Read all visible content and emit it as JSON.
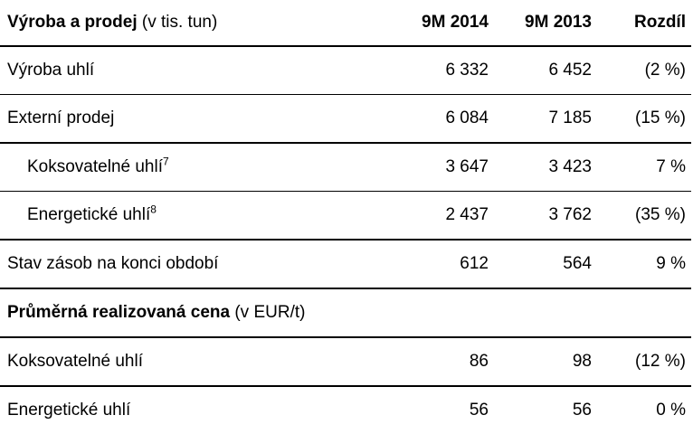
{
  "header": {
    "title_bold": "Výroba a prodej",
    "title_unit": "(v tis. tun)",
    "col1": "9M 2014",
    "col2": "9M 2013",
    "col3": "Rozdíl"
  },
  "rows": [
    {
      "label": "Výroba uhlí",
      "v2014": "6 332",
      "v2013": "6 452",
      "diff": "(2 %)"
    },
    {
      "label": "Externí prodej",
      "v2014": "6 084",
      "v2013": "7 185",
      "diff": "(15 %)"
    },
    {
      "label": "Koksovatelné uhlí",
      "sup": "7",
      "v2014": "3 647",
      "v2013": "3 423",
      "diff": "7 %"
    },
    {
      "label": "Energetické uhlí",
      "sup": "8",
      "v2014": "2 437",
      "v2013": "3 762",
      "diff": "(35 %)"
    },
    {
      "label": "Stav zásob na konci období",
      "v2014": "612",
      "v2013": "564",
      "diff": "9 %"
    }
  ],
  "section2": {
    "title_bold": "Průměrná realizovaná cena",
    "title_unit": "(v EUR/t)"
  },
  "rows2": [
    {
      "label": "Koksovatelné uhlí",
      "v2014": "86",
      "v2013": "98",
      "diff": "(12 %)"
    },
    {
      "label": "Energetické uhlí",
      "v2014": "56",
      "v2013": "56",
      "diff": "0 %"
    }
  ]
}
